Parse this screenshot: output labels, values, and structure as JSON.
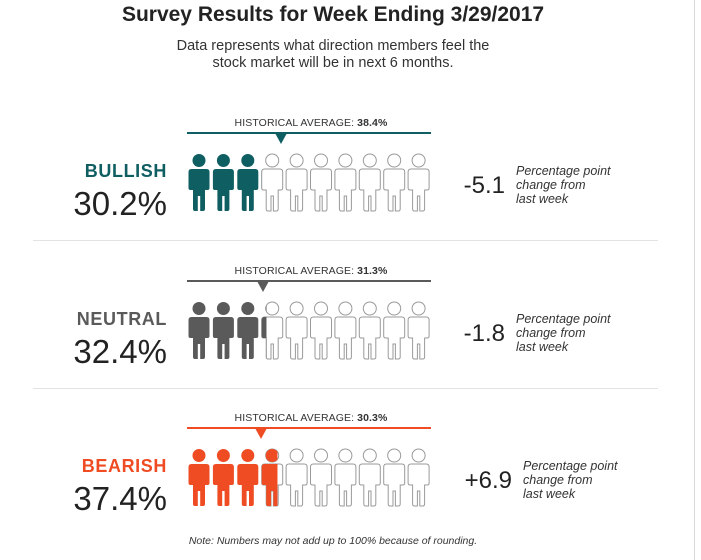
{
  "title": "Survey Results for Week Ending 3/29/2017",
  "subtitle_line1": "Data represents what direction members feel the",
  "subtitle_line2": "stock market will be in next 6 months.",
  "footnote": "Note: Numbers may not add up to 100% because of rounding.",
  "historical_prefix": "HISTORICAL AVERAGE:",
  "change_note_lines": [
    "Percentage point",
    "change from",
    "last week"
  ],
  "colors": {
    "bullish": "#0f5e62",
    "neutral": "#5a5a5a",
    "bearish": "#ef4c23",
    "empty_outline": "#9a9a9a"
  },
  "chart_data": {
    "type": "pictograph",
    "icons_per_row": 10,
    "unit": "percent",
    "categories": [
      {
        "key": "bullish",
        "name": "BULLISH",
        "value": 30.2,
        "value_label": "30.2%",
        "historical_average": 38.4,
        "historical_label": "38.4%",
        "change": -5.1,
        "change_label": "-5.1"
      },
      {
        "key": "neutral",
        "name": "NEUTRAL",
        "value": 32.4,
        "value_label": "32.4%",
        "historical_average": 31.3,
        "historical_label": "31.3%",
        "change": -1.8,
        "change_label": "-1.8"
      },
      {
        "key": "bearish",
        "name": "BEARISH",
        "value": 37.4,
        "value_label": "37.4%",
        "historical_average": 30.3,
        "historical_label": "30.3%",
        "change": 6.9,
        "change_label": "+6.9"
      }
    ]
  }
}
